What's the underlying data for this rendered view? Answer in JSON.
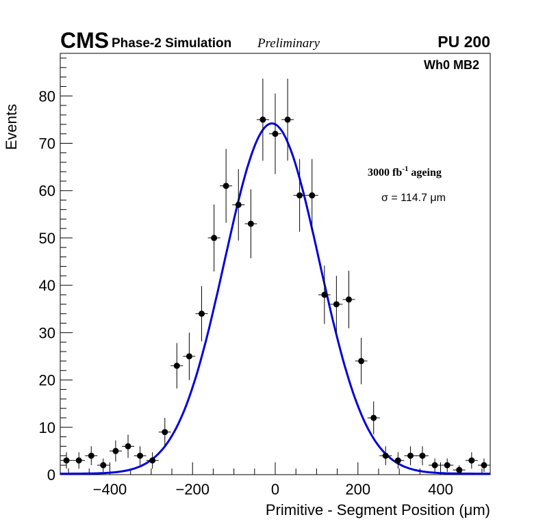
{
  "header": {
    "experiment": "CMS",
    "subtitle": "Phase-2 Simulation",
    "status": "Preliminary",
    "pileup": "PU 200"
  },
  "chart_data": {
    "type": "scatter",
    "title": "",
    "region_label": "Wh0 MB2",
    "ageing_label_prefix": "3000 fb",
    "ageing_label_exponent": "-1",
    "ageing_label_suffix": " ageing",
    "sigma_label": "σ = 114.7 μm",
    "xlabel": "Primitive - Segment Position (μm)",
    "ylabel": "Events",
    "xlim": [
      -520,
      520
    ],
    "ylim": [
      0,
      89
    ],
    "xticks": [
      -400,
      -200,
      0,
      200,
      400
    ],
    "yticks": [
      0,
      10,
      20,
      30,
      40,
      50,
      60,
      70,
      80
    ],
    "bin_width": 29.7,
    "series": [
      {
        "name": "data",
        "x": [
          -505,
          -475,
          -445,
          -416,
          -386,
          -356,
          -327,
          -297,
          -267,
          -238,
          -208,
          -178,
          -148,
          -119,
          -89,
          -59,
          -30,
          0,
          30,
          59,
          89,
          119,
          148,
          178,
          208,
          238,
          267,
          297,
          327,
          356,
          386,
          416,
          445,
          475,
          505
        ],
        "y": [
          3,
          3,
          4,
          2,
          5,
          6,
          4,
          3,
          9,
          23,
          25,
          34,
          50,
          61,
          57,
          53,
          75,
          72,
          75,
          59,
          59,
          38,
          36,
          37,
          24,
          12,
          4,
          3,
          4,
          4,
          2,
          2,
          1,
          3,
          2
        ]
      },
      {
        "name": "gaussian fit",
        "amplitude": 74,
        "mean": -8,
        "sigma": 114.7,
        "baseline": 0.2,
        "color": "#0000dd"
      }
    ]
  }
}
